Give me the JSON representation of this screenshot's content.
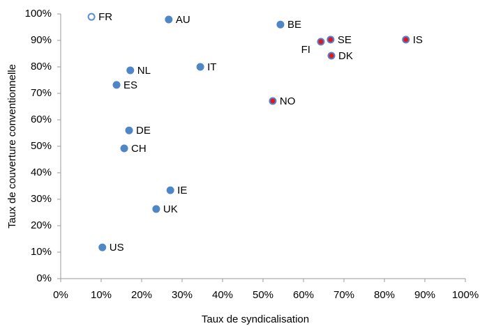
{
  "chart_data": {
    "type": "scatter",
    "x_label": "Taux de syndicalisation",
    "y_label": "Taux de couverture conventionnelle",
    "xlim": [
      0,
      100
    ],
    "ylim": [
      0,
      100
    ],
    "xticks": [
      {
        "value": 0,
        "label": "0%"
      },
      {
        "value": 10,
        "label": "10%"
      },
      {
        "value": 20,
        "label": "20%"
      },
      {
        "value": 30,
        "label": "30%"
      },
      {
        "value": 40,
        "label": "40%"
      },
      {
        "value": 50,
        "label": "50%"
      },
      {
        "value": 60,
        "label": "60%"
      },
      {
        "value": 70,
        "label": "70%"
      },
      {
        "value": 80,
        "label": "80%"
      },
      {
        "value": 90,
        "label": "90%"
      },
      {
        "value": 100,
        "label": "100%"
      }
    ],
    "yticks": [
      {
        "value": 0,
        "label": "0%"
      },
      {
        "value": 10,
        "label": "10%"
      },
      {
        "value": 20,
        "label": "20%"
      },
      {
        "value": 30,
        "label": "30%"
      },
      {
        "value": 40,
        "label": "40%"
      },
      {
        "value": 50,
        "label": "50%"
      },
      {
        "value": 60,
        "label": "60%"
      },
      {
        "value": 70,
        "label": "70%"
      },
      {
        "value": 80,
        "label": "80%"
      },
      {
        "value": 90,
        "label": "90%"
      },
      {
        "value": 100,
        "label": "100%"
      }
    ],
    "grid": false,
    "points": [
      {
        "label": "FR",
        "x": 7.6,
        "y": 98.9,
        "fill": "#ffffff",
        "stroke": "#5b8fd0"
      },
      {
        "label": "AU",
        "x": 26.7,
        "y": 97.9,
        "fill": "#4f86c6",
        "stroke": "#4f86c6"
      },
      {
        "label": "BE",
        "x": 54.3,
        "y": 96,
        "fill": "#4f86c6",
        "stroke": "#4f86c6"
      },
      {
        "label": "SE",
        "x": 66.7,
        "y": 90.3,
        "fill": "#e0162b",
        "stroke": "#4f86c6"
      },
      {
        "label": "FI",
        "x": 64.3,
        "y": 89.5,
        "fill": "#e0162b",
        "stroke": "#4f86c6",
        "label_side": "left"
      },
      {
        "label": "IS",
        "x": 85.3,
        "y": 90.3,
        "fill": "#e0162b",
        "stroke": "#4f86c6"
      },
      {
        "label": "DK",
        "x": 66.9,
        "y": 84.2,
        "fill": "#e0162b",
        "stroke": "#4f86c6"
      },
      {
        "label": "NL",
        "x": 17.2,
        "y": 78.7,
        "fill": "#4f86c6",
        "stroke": "#4f86c6"
      },
      {
        "label": "IT",
        "x": 34.5,
        "y": 80,
        "fill": "#4f86c6",
        "stroke": "#4f86c6"
      },
      {
        "label": "ES",
        "x": 13.8,
        "y": 73.2,
        "fill": "#4f86c6",
        "stroke": "#4f86c6"
      },
      {
        "label": "NO",
        "x": 52.4,
        "y": 67.1,
        "fill": "#e0162b",
        "stroke": "#4f86c6"
      },
      {
        "label": "DE",
        "x": 16.9,
        "y": 56,
        "fill": "#4f86c6",
        "stroke": "#4f86c6"
      },
      {
        "label": "CH",
        "x": 15.7,
        "y": 49.2,
        "fill": "#4f86c6",
        "stroke": "#4f86c6"
      },
      {
        "label": "IE",
        "x": 27.1,
        "y": 33.4,
        "fill": "#4f86c6",
        "stroke": "#4f86c6"
      },
      {
        "label": "UK",
        "x": 23.6,
        "y": 26.3,
        "fill": "#4f86c6",
        "stroke": "#4f86c6"
      },
      {
        "label": "US",
        "x": 10.3,
        "y": 11.8,
        "fill": "#4f86c6",
        "stroke": "#4f86c6"
      }
    ]
  }
}
